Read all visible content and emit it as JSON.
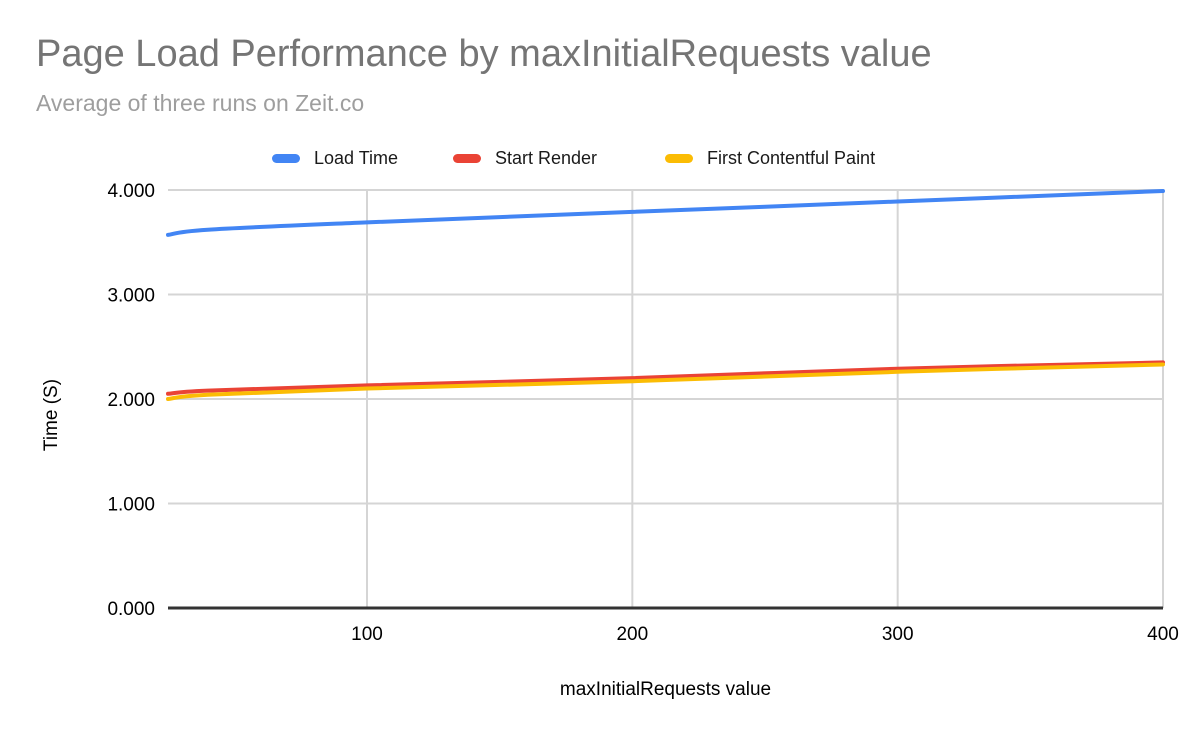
{
  "header": {
    "title": "Page Load Performance by maxInitialRequests value",
    "subtitle": "Average of three runs on Zeit.co"
  },
  "legend": {
    "position": "top",
    "items": [
      {
        "label": "Load Time",
        "color": "#4285F4"
      },
      {
        "label": "Start Render",
        "color": "#EA4335"
      },
      {
        "label": "First Contentful Paint",
        "color": "#FBBC04"
      }
    ]
  },
  "chart_data": {
    "type": "line",
    "title": "Page Load Performance by maxInitialRequests value",
    "subtitle": "Average of three runs on Zeit.co",
    "xlabel": "maxInitialRequests value",
    "ylabel": "Time (S)",
    "x": [
      25,
      40,
      100,
      200,
      300,
      400
    ],
    "series": [
      {
        "name": "Load Time",
        "color": "#4285F4",
        "values": [
          3.57,
          3.62,
          3.69,
          3.79,
          3.89,
          3.99
        ]
      },
      {
        "name": "Start Render",
        "color": "#EA4335",
        "values": [
          2.05,
          2.08,
          2.13,
          2.2,
          2.29,
          2.35
        ]
      },
      {
        "name": "First Contentful Paint",
        "color": "#FBBC04",
        "values": [
          2.0,
          2.04,
          2.1,
          2.17,
          2.26,
          2.33
        ]
      }
    ],
    "xlim": [
      25,
      400
    ],
    "ylim": [
      0,
      4
    ],
    "x_ticks": [
      100,
      200,
      300,
      400
    ],
    "x_tick_labels": [
      "100",
      "200",
      "300",
      "400"
    ],
    "y_ticks": [
      0,
      1,
      2,
      3,
      4
    ],
    "y_tick_labels": [
      "0.000",
      "1.000",
      "2.000",
      "3.000",
      "4.000"
    ],
    "grid": true,
    "smooth_lines": true,
    "legend_position": "top"
  },
  "colors": {
    "title": "#757575",
    "subtitle": "#9E9E9E",
    "axis_text": "#000000",
    "gridline": "#D5D5D5",
    "axis_line": "#333333",
    "background": "#FFFFFF"
  }
}
